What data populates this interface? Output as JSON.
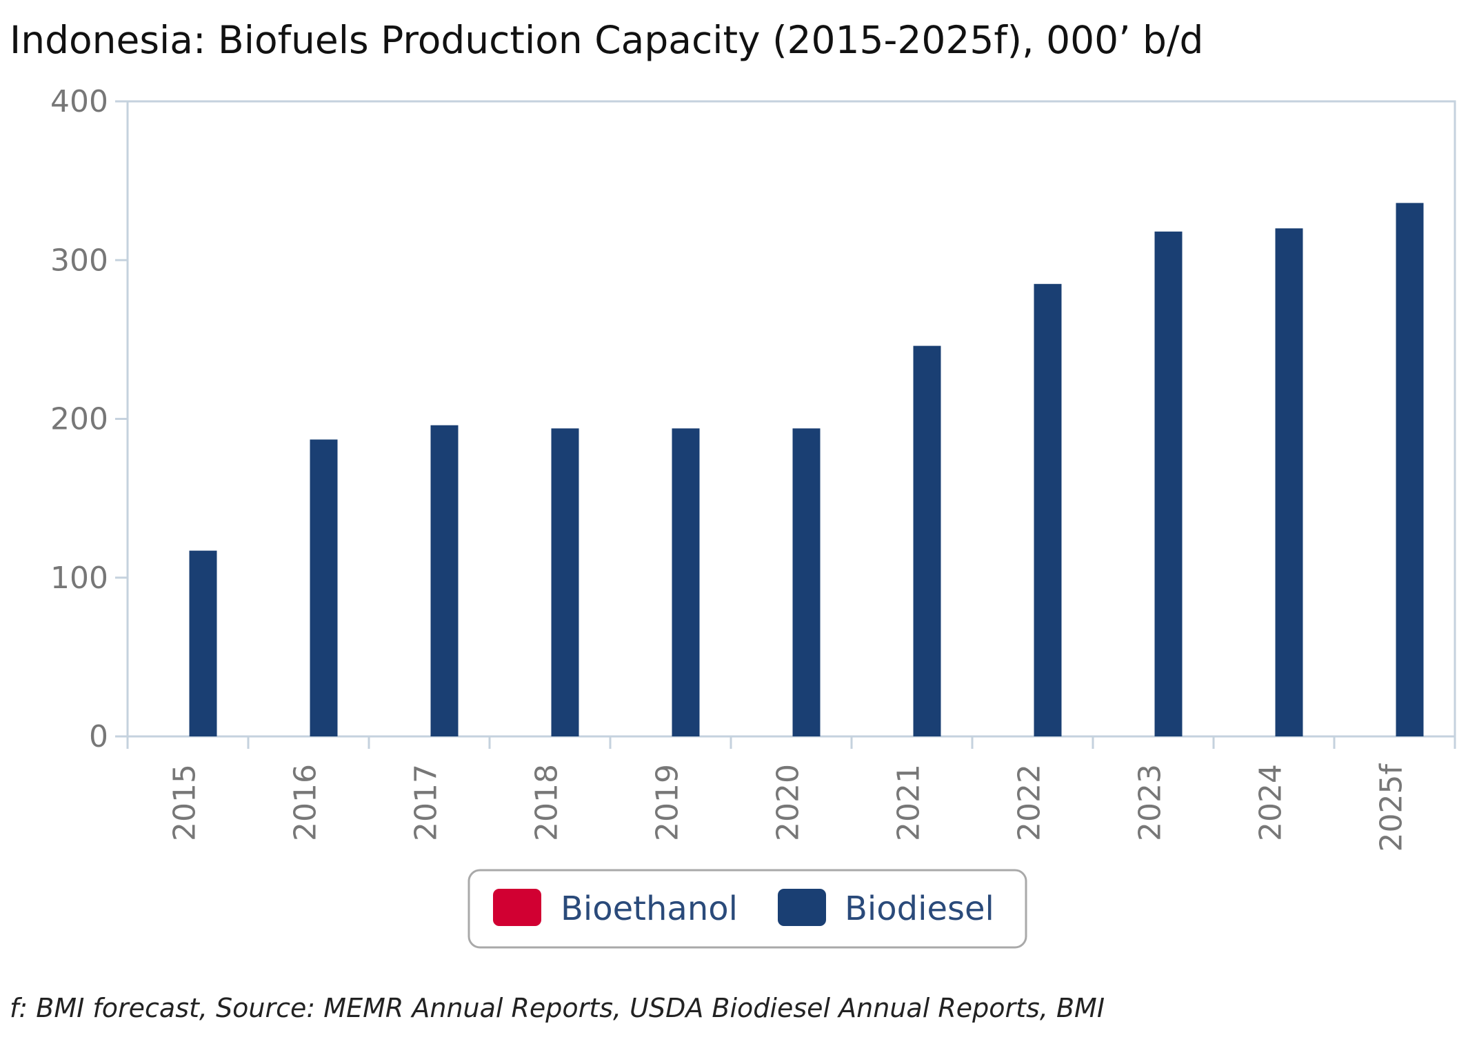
{
  "title": "Indonesia: Biofuels Production Capacity (2015-2025f), 000’ b/d",
  "footnote": "f: BMI forecast, Source: MEMR Annual Reports, USDA Biodiesel Annual Reports, BMI",
  "colors": {
    "bioethanol": "#d10032",
    "biodiesel": "#1a3f73",
    "axis": "#c5d2de",
    "tick_text": "#777777"
  },
  "chart_data": {
    "type": "bar",
    "categories": [
      "2015",
      "2016",
      "2017",
      "2018",
      "2019",
      "2020",
      "2021",
      "2022",
      "2023",
      "2024",
      "2025f"
    ],
    "series": [
      {
        "name": "Bioethanol",
        "values": [
          0,
          0,
          0,
          0,
          0,
          0,
          0,
          0,
          0,
          0,
          0
        ]
      },
      {
        "name": "Biodiesel",
        "values": [
          117,
          187,
          196,
          194,
          194,
          194,
          246,
          285,
          318,
          320,
          336
        ]
      }
    ],
    "title": "Indonesia: Biofuels Production Capacity (2015-2025f), 000’ b/d",
    "xlabel": "",
    "ylabel": "",
    "ylim": [
      0,
      400
    ],
    "yticks": [
      "0",
      "100",
      "200",
      "300",
      "400"
    ],
    "grid": false,
    "legend": {
      "placement": "bottom-center",
      "entries": [
        "Bioethanol",
        "Biodiesel"
      ]
    }
  }
}
